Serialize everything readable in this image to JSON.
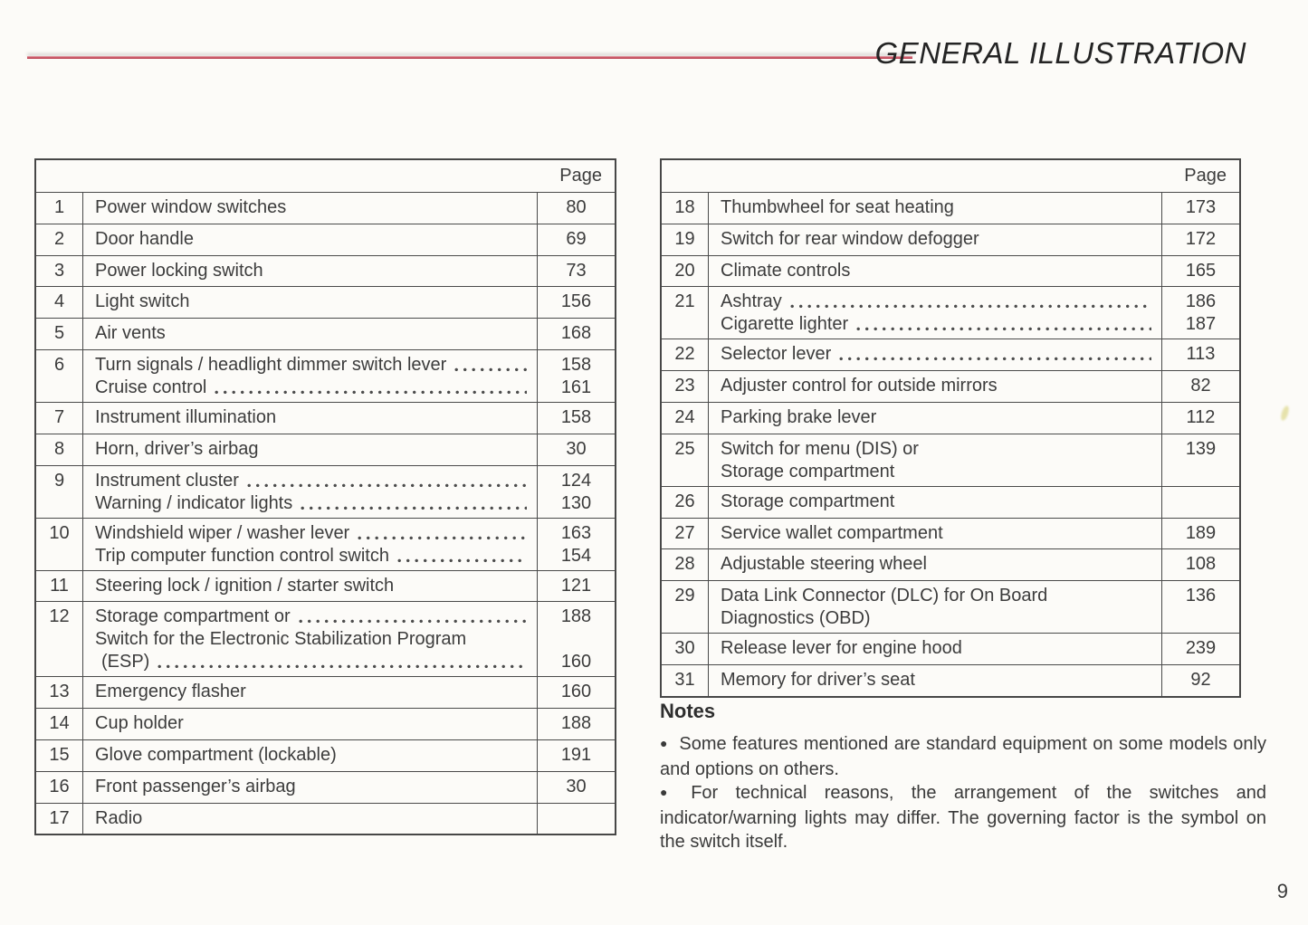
{
  "header": {
    "title": "GENERAL ILLUSTRATION"
  },
  "left_table": {
    "page_header": "Page",
    "rows": [
      {
        "num": "1",
        "lines": [
          {
            "text": "Power window switches",
            "leader": false,
            "page": "80"
          }
        ]
      },
      {
        "num": "2",
        "lines": [
          {
            "text": "Door handle",
            "leader": false,
            "page": "69"
          }
        ]
      },
      {
        "num": "3",
        "lines": [
          {
            "text": "Power locking switch",
            "leader": false,
            "page": "73"
          }
        ]
      },
      {
        "num": "4",
        "lines": [
          {
            "text": "Light switch",
            "leader": false,
            "page": "156"
          }
        ]
      },
      {
        "num": "5",
        "lines": [
          {
            "text": "Air vents",
            "leader": false,
            "page": "168"
          }
        ]
      },
      {
        "num": "6",
        "lines": [
          {
            "text": "Turn signals / headlight dimmer switch lever",
            "leader": true,
            "page": "158"
          },
          {
            "text": "Cruise control",
            "leader": true,
            "page": "161"
          }
        ]
      },
      {
        "num": "7",
        "lines": [
          {
            "text": "Instrument illumination",
            "leader": false,
            "page": "158"
          }
        ]
      },
      {
        "num": "8",
        "lines": [
          {
            "text": "Horn, driver’s airbag",
            "leader": false,
            "page": "30"
          }
        ]
      },
      {
        "num": "9",
        "lines": [
          {
            "text": "Instrument cluster",
            "leader": true,
            "page": "124"
          },
          {
            "text": "Warning / indicator lights",
            "leader": true,
            "page": "130"
          }
        ]
      },
      {
        "num": "10",
        "lines": [
          {
            "text": "Windshield wiper / washer lever",
            "leader": true,
            "page": "163"
          },
          {
            "text": "Trip computer function control switch",
            "leader": true,
            "page": "154"
          }
        ]
      },
      {
        "num": "11",
        "lines": [
          {
            "text": "Steering lock / ignition / starter switch",
            "leader": false,
            "page": "121"
          }
        ]
      },
      {
        "num": "12",
        "lines": [
          {
            "text": "Storage compartment or",
            "leader": true,
            "page": "188"
          },
          {
            "text": "Switch for the Electronic Stabilization Program",
            "leader": false,
            "page": ""
          },
          {
            "text": "(ESP)",
            "leader": true,
            "page": "160",
            "indent": true
          }
        ]
      },
      {
        "num": "13",
        "lines": [
          {
            "text": "Emergency flasher",
            "leader": false,
            "page": "160"
          }
        ]
      },
      {
        "num": "14",
        "lines": [
          {
            "text": "Cup holder",
            "leader": false,
            "page": "188"
          }
        ]
      },
      {
        "num": "15",
        "lines": [
          {
            "text": "Glove compartment (lockable)",
            "leader": false,
            "page": "191"
          }
        ]
      },
      {
        "num": "16",
        "lines": [
          {
            "text": "Front passenger’s airbag",
            "leader": false,
            "page": "30"
          }
        ]
      },
      {
        "num": "17",
        "lines": [
          {
            "text": "Radio",
            "leader": false,
            "page": ""
          }
        ]
      }
    ]
  },
  "right_table": {
    "page_header": "Page",
    "rows": [
      {
        "num": "18",
        "lines": [
          {
            "text": "Thumbwheel for seat heating",
            "leader": false,
            "page": "173"
          }
        ]
      },
      {
        "num": "19",
        "lines": [
          {
            "text": "Switch for rear window defogger",
            "leader": false,
            "page": "172"
          }
        ]
      },
      {
        "num": "20",
        "lines": [
          {
            "text": "Climate controls",
            "leader": false,
            "page": "165"
          }
        ]
      },
      {
        "num": "21",
        "lines": [
          {
            "text": "Ashtray",
            "leader": true,
            "page": "186"
          },
          {
            "text": "Cigarette lighter",
            "leader": true,
            "page": "187"
          }
        ]
      },
      {
        "num": "22",
        "lines": [
          {
            "text": "Selector lever",
            "leader": true,
            "page": "113"
          }
        ]
      },
      {
        "num": "23",
        "lines": [
          {
            "text": "Adjuster control for outside mirrors",
            "leader": false,
            "page": "82"
          }
        ]
      },
      {
        "num": "24",
        "lines": [
          {
            "text": "Parking brake lever",
            "leader": false,
            "page": "112"
          }
        ]
      },
      {
        "num": "25",
        "lines": [
          {
            "text": "Switch for menu (DIS) or",
            "leader": false,
            "page": "139"
          },
          {
            "text": "Storage compartment",
            "leader": false,
            "page": ""
          }
        ]
      },
      {
        "num": "26",
        "lines": [
          {
            "text": "Storage compartment",
            "leader": false,
            "page": ""
          }
        ]
      },
      {
        "num": "27",
        "lines": [
          {
            "text": "Service wallet compartment",
            "leader": false,
            "page": "189"
          }
        ]
      },
      {
        "num": "28",
        "lines": [
          {
            "text": "Adjustable steering wheel",
            "leader": false,
            "page": "108"
          }
        ]
      },
      {
        "num": "29",
        "lines": [
          {
            "text": "Data Link Connector (DLC) for On Board",
            "leader": false,
            "page": "136"
          },
          {
            "text": "Diagnostics (OBD)",
            "leader": false,
            "page": ""
          }
        ]
      },
      {
        "num": "30",
        "lines": [
          {
            "text": "Release lever for engine hood",
            "leader": false,
            "page": "239"
          }
        ]
      },
      {
        "num": "31",
        "lines": [
          {
            "text": "Memory for driver’s seat",
            "leader": false,
            "page": "92"
          }
        ]
      }
    ]
  },
  "notes": {
    "heading": "Notes",
    "bullet_char": "●",
    "bullets": [
      "Some features mentioned are standard equipment on some models only and options on others.",
      "For technical reasons, the arrangement of the switches and indicator/warning lights may differ. The governing factor is the symbol on the switch itself."
    ]
  },
  "page_number": "9",
  "accent_color": "#c84f5f"
}
